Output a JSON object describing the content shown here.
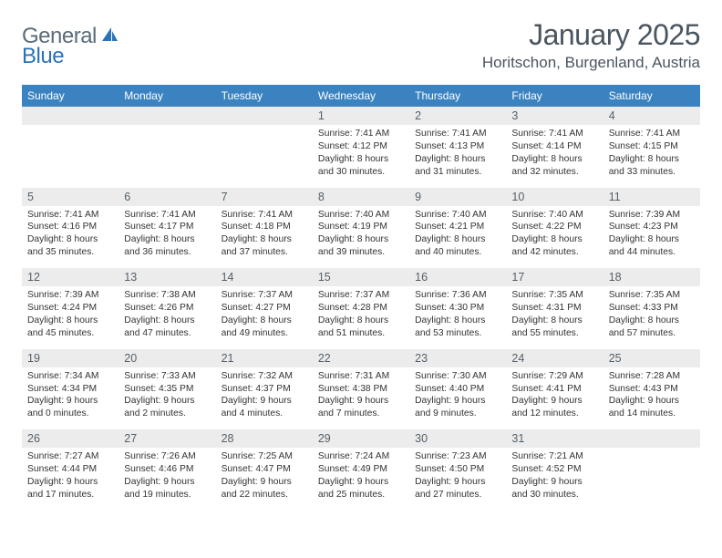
{
  "logo": {
    "general": "General",
    "blue": "Blue"
  },
  "title": "January 2025",
  "location": "Horitschon, Burgenland, Austria",
  "colors": {
    "header_bg": "#3b83c0",
    "header_text": "#ffffff",
    "daynum_bg": "#ececec",
    "text": "#333333",
    "title_text": "#4a5560",
    "row_border": "#2f5d8a"
  },
  "day_names": [
    "Sunday",
    "Monday",
    "Tuesday",
    "Wednesday",
    "Thursday",
    "Friday",
    "Saturday"
  ],
  "weeks": [
    [
      null,
      null,
      null,
      {
        "n": "1",
        "sr": "7:41 AM",
        "ss": "4:12 PM",
        "dl": "8 hours and 30 minutes."
      },
      {
        "n": "2",
        "sr": "7:41 AM",
        "ss": "4:13 PM",
        "dl": "8 hours and 31 minutes."
      },
      {
        "n": "3",
        "sr": "7:41 AM",
        "ss": "4:14 PM",
        "dl": "8 hours and 32 minutes."
      },
      {
        "n": "4",
        "sr": "7:41 AM",
        "ss": "4:15 PM",
        "dl": "8 hours and 33 minutes."
      }
    ],
    [
      {
        "n": "5",
        "sr": "7:41 AM",
        "ss": "4:16 PM",
        "dl": "8 hours and 35 minutes."
      },
      {
        "n": "6",
        "sr": "7:41 AM",
        "ss": "4:17 PM",
        "dl": "8 hours and 36 minutes."
      },
      {
        "n": "7",
        "sr": "7:41 AM",
        "ss": "4:18 PM",
        "dl": "8 hours and 37 minutes."
      },
      {
        "n": "8",
        "sr": "7:40 AM",
        "ss": "4:19 PM",
        "dl": "8 hours and 39 minutes."
      },
      {
        "n": "9",
        "sr": "7:40 AM",
        "ss": "4:21 PM",
        "dl": "8 hours and 40 minutes."
      },
      {
        "n": "10",
        "sr": "7:40 AM",
        "ss": "4:22 PM",
        "dl": "8 hours and 42 minutes."
      },
      {
        "n": "11",
        "sr": "7:39 AM",
        "ss": "4:23 PM",
        "dl": "8 hours and 44 minutes."
      }
    ],
    [
      {
        "n": "12",
        "sr": "7:39 AM",
        "ss": "4:24 PM",
        "dl": "8 hours and 45 minutes."
      },
      {
        "n": "13",
        "sr": "7:38 AM",
        "ss": "4:26 PM",
        "dl": "8 hours and 47 minutes."
      },
      {
        "n": "14",
        "sr": "7:37 AM",
        "ss": "4:27 PM",
        "dl": "8 hours and 49 minutes."
      },
      {
        "n": "15",
        "sr": "7:37 AM",
        "ss": "4:28 PM",
        "dl": "8 hours and 51 minutes."
      },
      {
        "n": "16",
        "sr": "7:36 AM",
        "ss": "4:30 PM",
        "dl": "8 hours and 53 minutes."
      },
      {
        "n": "17",
        "sr": "7:35 AM",
        "ss": "4:31 PM",
        "dl": "8 hours and 55 minutes."
      },
      {
        "n": "18",
        "sr": "7:35 AM",
        "ss": "4:33 PM",
        "dl": "8 hours and 57 minutes."
      }
    ],
    [
      {
        "n": "19",
        "sr": "7:34 AM",
        "ss": "4:34 PM",
        "dl": "9 hours and 0 minutes."
      },
      {
        "n": "20",
        "sr": "7:33 AM",
        "ss": "4:35 PM",
        "dl": "9 hours and 2 minutes."
      },
      {
        "n": "21",
        "sr": "7:32 AM",
        "ss": "4:37 PM",
        "dl": "9 hours and 4 minutes."
      },
      {
        "n": "22",
        "sr": "7:31 AM",
        "ss": "4:38 PM",
        "dl": "9 hours and 7 minutes."
      },
      {
        "n": "23",
        "sr": "7:30 AM",
        "ss": "4:40 PM",
        "dl": "9 hours and 9 minutes."
      },
      {
        "n": "24",
        "sr": "7:29 AM",
        "ss": "4:41 PM",
        "dl": "9 hours and 12 minutes."
      },
      {
        "n": "25",
        "sr": "7:28 AM",
        "ss": "4:43 PM",
        "dl": "9 hours and 14 minutes."
      }
    ],
    [
      {
        "n": "26",
        "sr": "7:27 AM",
        "ss": "4:44 PM",
        "dl": "9 hours and 17 minutes."
      },
      {
        "n": "27",
        "sr": "7:26 AM",
        "ss": "4:46 PM",
        "dl": "9 hours and 19 minutes."
      },
      {
        "n": "28",
        "sr": "7:25 AM",
        "ss": "4:47 PM",
        "dl": "9 hours and 22 minutes."
      },
      {
        "n": "29",
        "sr": "7:24 AM",
        "ss": "4:49 PM",
        "dl": "9 hours and 25 minutes."
      },
      {
        "n": "30",
        "sr": "7:23 AM",
        "ss": "4:50 PM",
        "dl": "9 hours and 27 minutes."
      },
      {
        "n": "31",
        "sr": "7:21 AM",
        "ss": "4:52 PM",
        "dl": "9 hours and 30 minutes."
      },
      null
    ]
  ],
  "labels": {
    "sunrise": "Sunrise:",
    "sunset": "Sunset:",
    "daylight": "Daylight:"
  }
}
